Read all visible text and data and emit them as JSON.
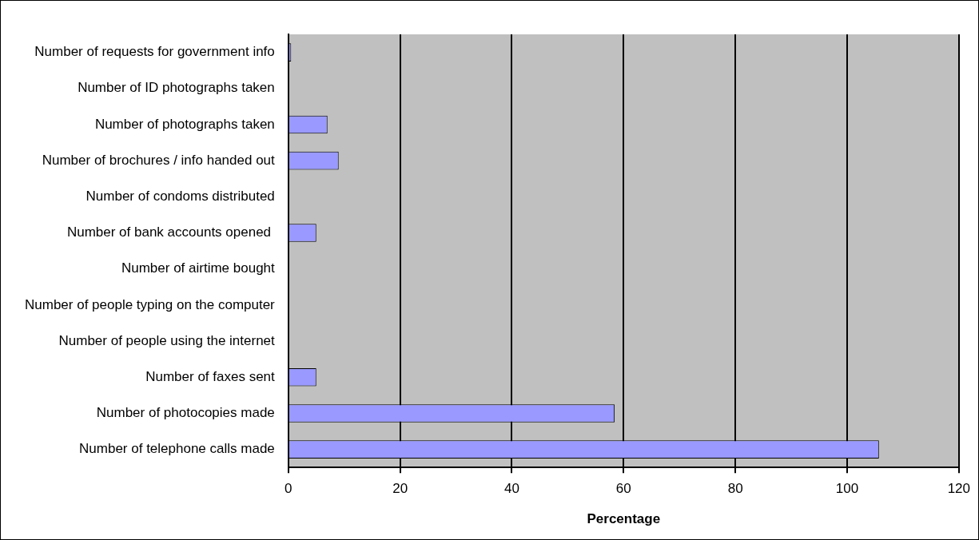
{
  "chart_data": {
    "type": "bar",
    "orientation": "horizontal",
    "xlabel": "Percentage",
    "categories": [
      "Number of requests for government info",
      "Number of ID photographs taken",
      "Number of photographs taken",
      "Number of brochures / info handed out",
      "Number of condoms distributed",
      "Number of bank accounts opened ",
      "Number of airtime bought",
      "Number of people typing on the computer",
      "Number of people using the internet",
      "Number of faxes sent",
      "Number of photocopies made",
      "Number of telephone calls made"
    ],
    "values": [
      0.5,
      0,
      7,
      9,
      0,
      5,
      0,
      0,
      0,
      5,
      58.4,
      105.7
    ],
    "color": "#9999ff",
    "xlim": [
      0,
      120
    ],
    "xticks": [
      0,
      20,
      40,
      60,
      80,
      100,
      120
    ],
    "grid": "x",
    "legend": false
  }
}
